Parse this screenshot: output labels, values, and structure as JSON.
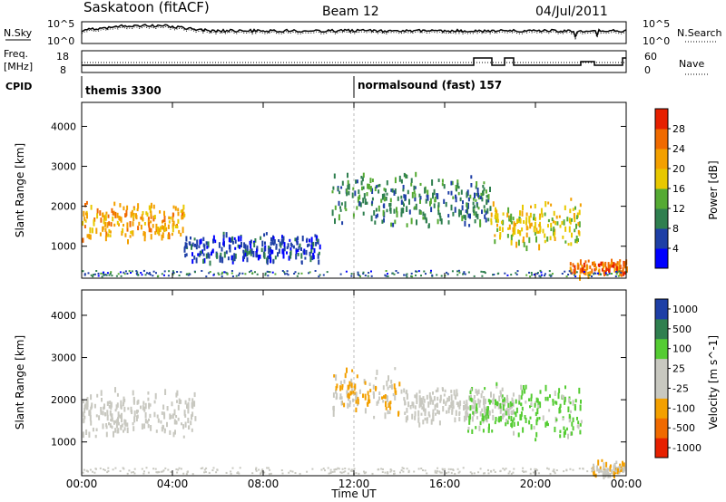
{
  "header": {
    "station": "Saskatoon (fitACF)",
    "beam": "Beam 12",
    "date": "04/Jul/2011"
  },
  "sky_panel": {
    "left_label": "N.Sky",
    "right_label": "N.Search",
    "left_ticks": [
      "10^5",
      "10^0"
    ],
    "right_ticks": [
      "10^5",
      "10^0"
    ]
  },
  "freq_panel": {
    "left_label_line1": "Freq.",
    "left_label_line2": "[MHz]",
    "right_label": "Nave",
    "left_ticks": [
      "18",
      "8"
    ],
    "right_ticks": [
      "60",
      "0"
    ]
  },
  "cpid": {
    "label": "CPID",
    "programs": [
      "themis 3300",
      "normalsound (fast) 157"
    ]
  },
  "x_axis": {
    "title": "Time UT",
    "ticks": [
      "00:00",
      "04:00",
      "08:00",
      "12:00",
      "16:00",
      "20:00",
      "00:00"
    ]
  },
  "colors": {
    "power_scale": [
      "#0000ff",
      "#1e3fa6",
      "#2f7f4f",
      "#55aa33",
      "#e8c800",
      "#f3a000",
      "#f06a00",
      "#e62000"
    ],
    "velocity_scale": [
      "#e62000",
      "#f06a00",
      "#f3a000",
      "#c8c8c0",
      "#c8c8c0",
      "#55cc33",
      "#2f7f4f",
      "#1e3fa6"
    ]
  },
  "chart_data": [
    {
      "type": "heatmap",
      "title": "",
      "xlabel": "Time UT",
      "ylabel": "Slant Range [km]",
      "x_ticks": [
        "00:00",
        "04:00",
        "08:00",
        "12:00",
        "16:00",
        "20:00",
        "00:00"
      ],
      "y_ticks": [
        1000,
        2000,
        3000,
        4000
      ],
      "ylim": [
        200,
        4600
      ],
      "colorbar": {
        "label": "Power [dB]",
        "ticks": [
          "4",
          "8",
          "12",
          "16",
          "20",
          "24",
          "28"
        ],
        "range": [
          0,
          32
        ]
      },
      "echo_regions": [
        {
          "t_start": 0.0,
          "t_end": 4.5,
          "range_center_km": 1650,
          "range_width_km": 700,
          "level_db": 22
        },
        {
          "t_start": 4.5,
          "t_end": 10.5,
          "range_center_km": 1000,
          "range_width_km": 500,
          "level_db": 6
        },
        {
          "t_start": 11.0,
          "t_end": 18.0,
          "range_center_km": 2200,
          "range_width_km": 900,
          "level_db": 10
        },
        {
          "t_start": 18.0,
          "t_end": 22.0,
          "range_center_km": 1600,
          "range_width_km": 800,
          "level_db": 18
        },
        {
          "t_start": 21.5,
          "t_end": 24.0,
          "range_center_km": 500,
          "range_width_km": 300,
          "level_db": 26
        }
      ]
    },
    {
      "type": "heatmap",
      "title": "",
      "xlabel": "Time UT",
      "ylabel": "Slant Range [km]",
      "x_ticks": [
        "00:00",
        "04:00",
        "08:00",
        "12:00",
        "16:00",
        "20:00",
        "00:00"
      ],
      "y_ticks": [
        1000,
        2000,
        3000,
        4000
      ],
      "ylim": [
        200,
        4600
      ],
      "colorbar": {
        "label": "Velocity [m s^-1]",
        "ticks": [
          "-1000",
          "-500",
          "-100",
          "-25",
          "25",
          "100",
          "500",
          "1000"
        ],
        "range": [
          -1200,
          1200
        ]
      },
      "echo_regions": [
        {
          "t_start": 0.0,
          "t_end": 5.0,
          "range_center_km": 1700,
          "range_width_km": 800,
          "level_ms": 0
        },
        {
          "t_start": 11.0,
          "t_end": 14.0,
          "range_center_km": 2200,
          "range_width_km": 800,
          "level_ms": -300
        },
        {
          "t_start": 14.0,
          "t_end": 19.0,
          "range_center_km": 1900,
          "range_width_km": 600,
          "level_ms": 0
        },
        {
          "t_start": 17.0,
          "t_end": 22.0,
          "range_center_km": 1800,
          "range_width_km": 900,
          "level_ms": 400
        },
        {
          "t_start": 22.5,
          "t_end": 24.0,
          "range_center_km": 400,
          "range_width_km": 300,
          "level_ms": -300
        }
      ]
    }
  ]
}
